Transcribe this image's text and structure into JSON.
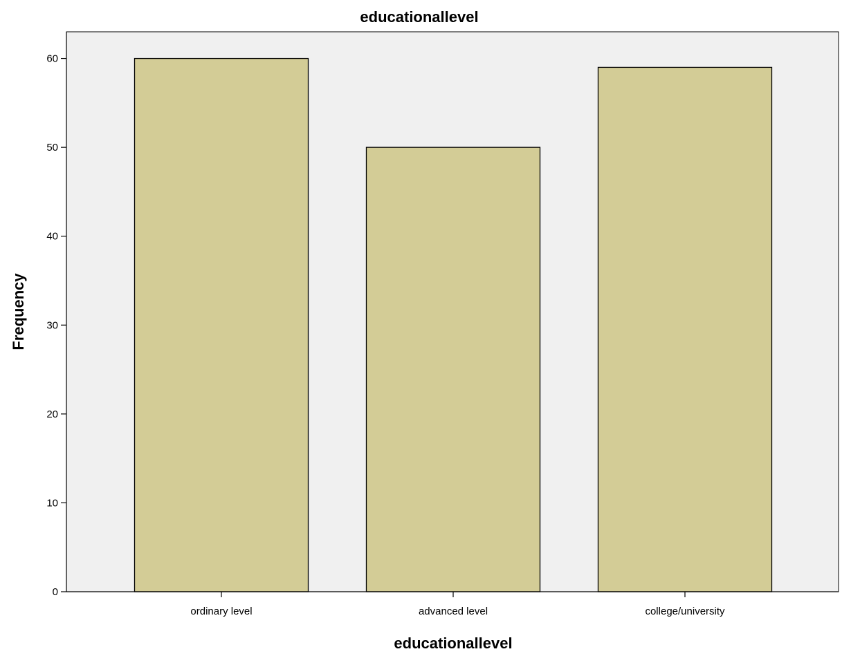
{
  "chart_data": {
    "type": "bar",
    "title": "educationallevel",
    "xlabel": "educationallevel",
    "ylabel": "Frequency",
    "categories": [
      "ordinary level",
      "advanced level",
      "college/university"
    ],
    "values": [
      60,
      50,
      59
    ],
    "ylim": [
      0,
      63
    ],
    "yticks": [
      "0",
      "10",
      "20",
      "30",
      "40",
      "50",
      "60"
    ],
    "grid": false,
    "legend": "none",
    "bar_color": "#d3cc96",
    "plot_background": "#f0f0f0"
  }
}
